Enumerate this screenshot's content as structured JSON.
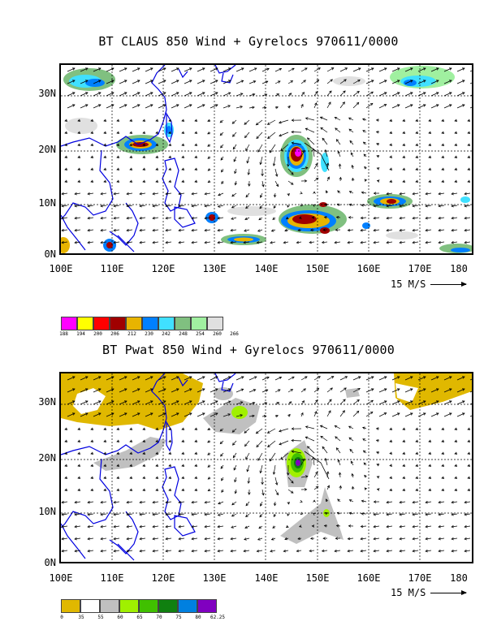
{
  "panels": [
    {
      "title": "BT CLAUS 850 Wind + Gyrelocs 970611/0000",
      "lat_labels": [
        "30N",
        "20N",
        "10N",
        "0N"
      ],
      "lon_labels": [
        "100E",
        "110E",
        "120E",
        "130E",
        "140E",
        "150E",
        "160E",
        "170E",
        "180"
      ],
      "vector_scale": "15 M/S",
      "legend": {
        "labels": [
          "188",
          "194",
          "200",
          "206",
          "212",
          "230",
          "242",
          "248",
          "254",
          "260",
          "266"
        ],
        "colors": [
          "#ff00ff",
          "#ffff00",
          "#ff0000",
          "#a00000",
          "#e8b400",
          "#0080ff",
          "#40e0ff",
          "#80c080",
          "#a0f0a0",
          "#e0e0e0"
        ]
      }
    },
    {
      "title": "BT Pwat 850 Wind + Gyrelocs 970611/0000",
      "lat_labels": [
        "30N",
        "20N",
        "10N",
        "0N"
      ],
      "lon_labels": [
        "100E",
        "110E",
        "120E",
        "130E",
        "140E",
        "150E",
        "160E",
        "170E",
        "180"
      ],
      "vector_scale": "15 M/S",
      "legend": {
        "labels": [
          "0",
          "35",
          "55",
          "60",
          "65",
          "70",
          "75",
          "80",
          "62.25"
        ],
        "colors": [
          "#e0b800",
          "#ffffff",
          "#c0c0c0",
          "#a0f000",
          "#40c000",
          "#108010",
          "#0080e0",
          "#8000c0"
        ]
      }
    }
  ]
}
